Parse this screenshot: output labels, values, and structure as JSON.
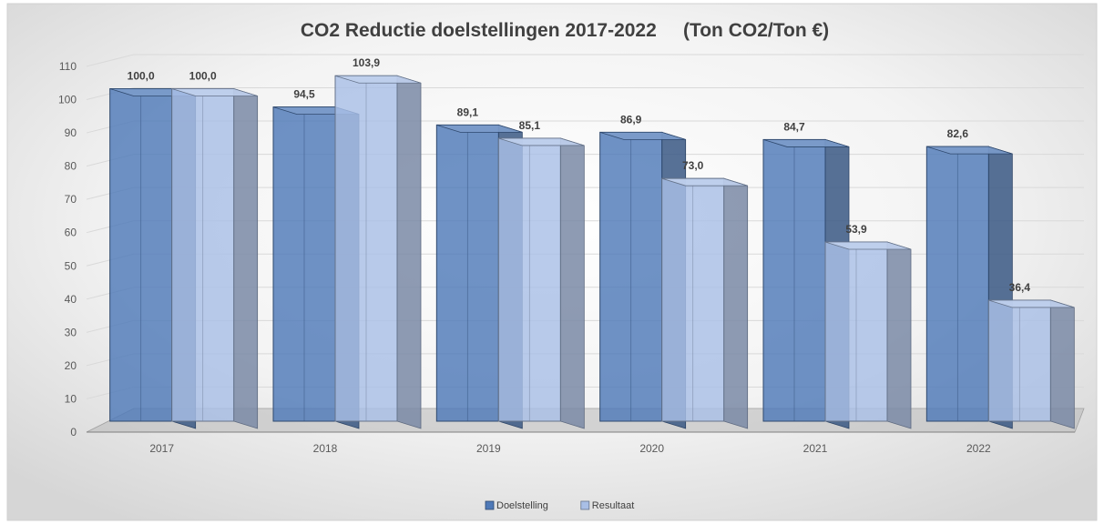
{
  "chart_data": {
    "type": "bar",
    "title": "CO2 Reductie doelstellingen 2017-2022     (Ton CO2/Ton €)",
    "categories": [
      "2017",
      "2018",
      "2019",
      "2020",
      "2021",
      "2022"
    ],
    "series": [
      {
        "name": "Doelstelling",
        "values": [
          100.0,
          94.5,
          89.1,
          86.9,
          84.7,
          82.6
        ],
        "labels": [
          "100,0",
          "94,5",
          "89,1",
          "86,9",
          "84,7",
          "82,6"
        ],
        "color": "#4f7ab8"
      },
      {
        "name": "Resultaat",
        "values": [
          100.0,
          103.9,
          85.1,
          73.0,
          53.9,
          36.4
        ],
        "labels": [
          "100,0",
          "103,9",
          "85,1",
          "73,0",
          "53,9",
          "36,4"
        ],
        "color": "#a9bfe6"
      }
    ],
    "ylim": [
      0,
      110
    ],
    "yticks": [
      "0",
      "10",
      "20",
      "30",
      "40",
      "50",
      "60",
      "70",
      "80",
      "90",
      "100",
      "110"
    ],
    "grid": true,
    "legend_position": "bottom"
  }
}
